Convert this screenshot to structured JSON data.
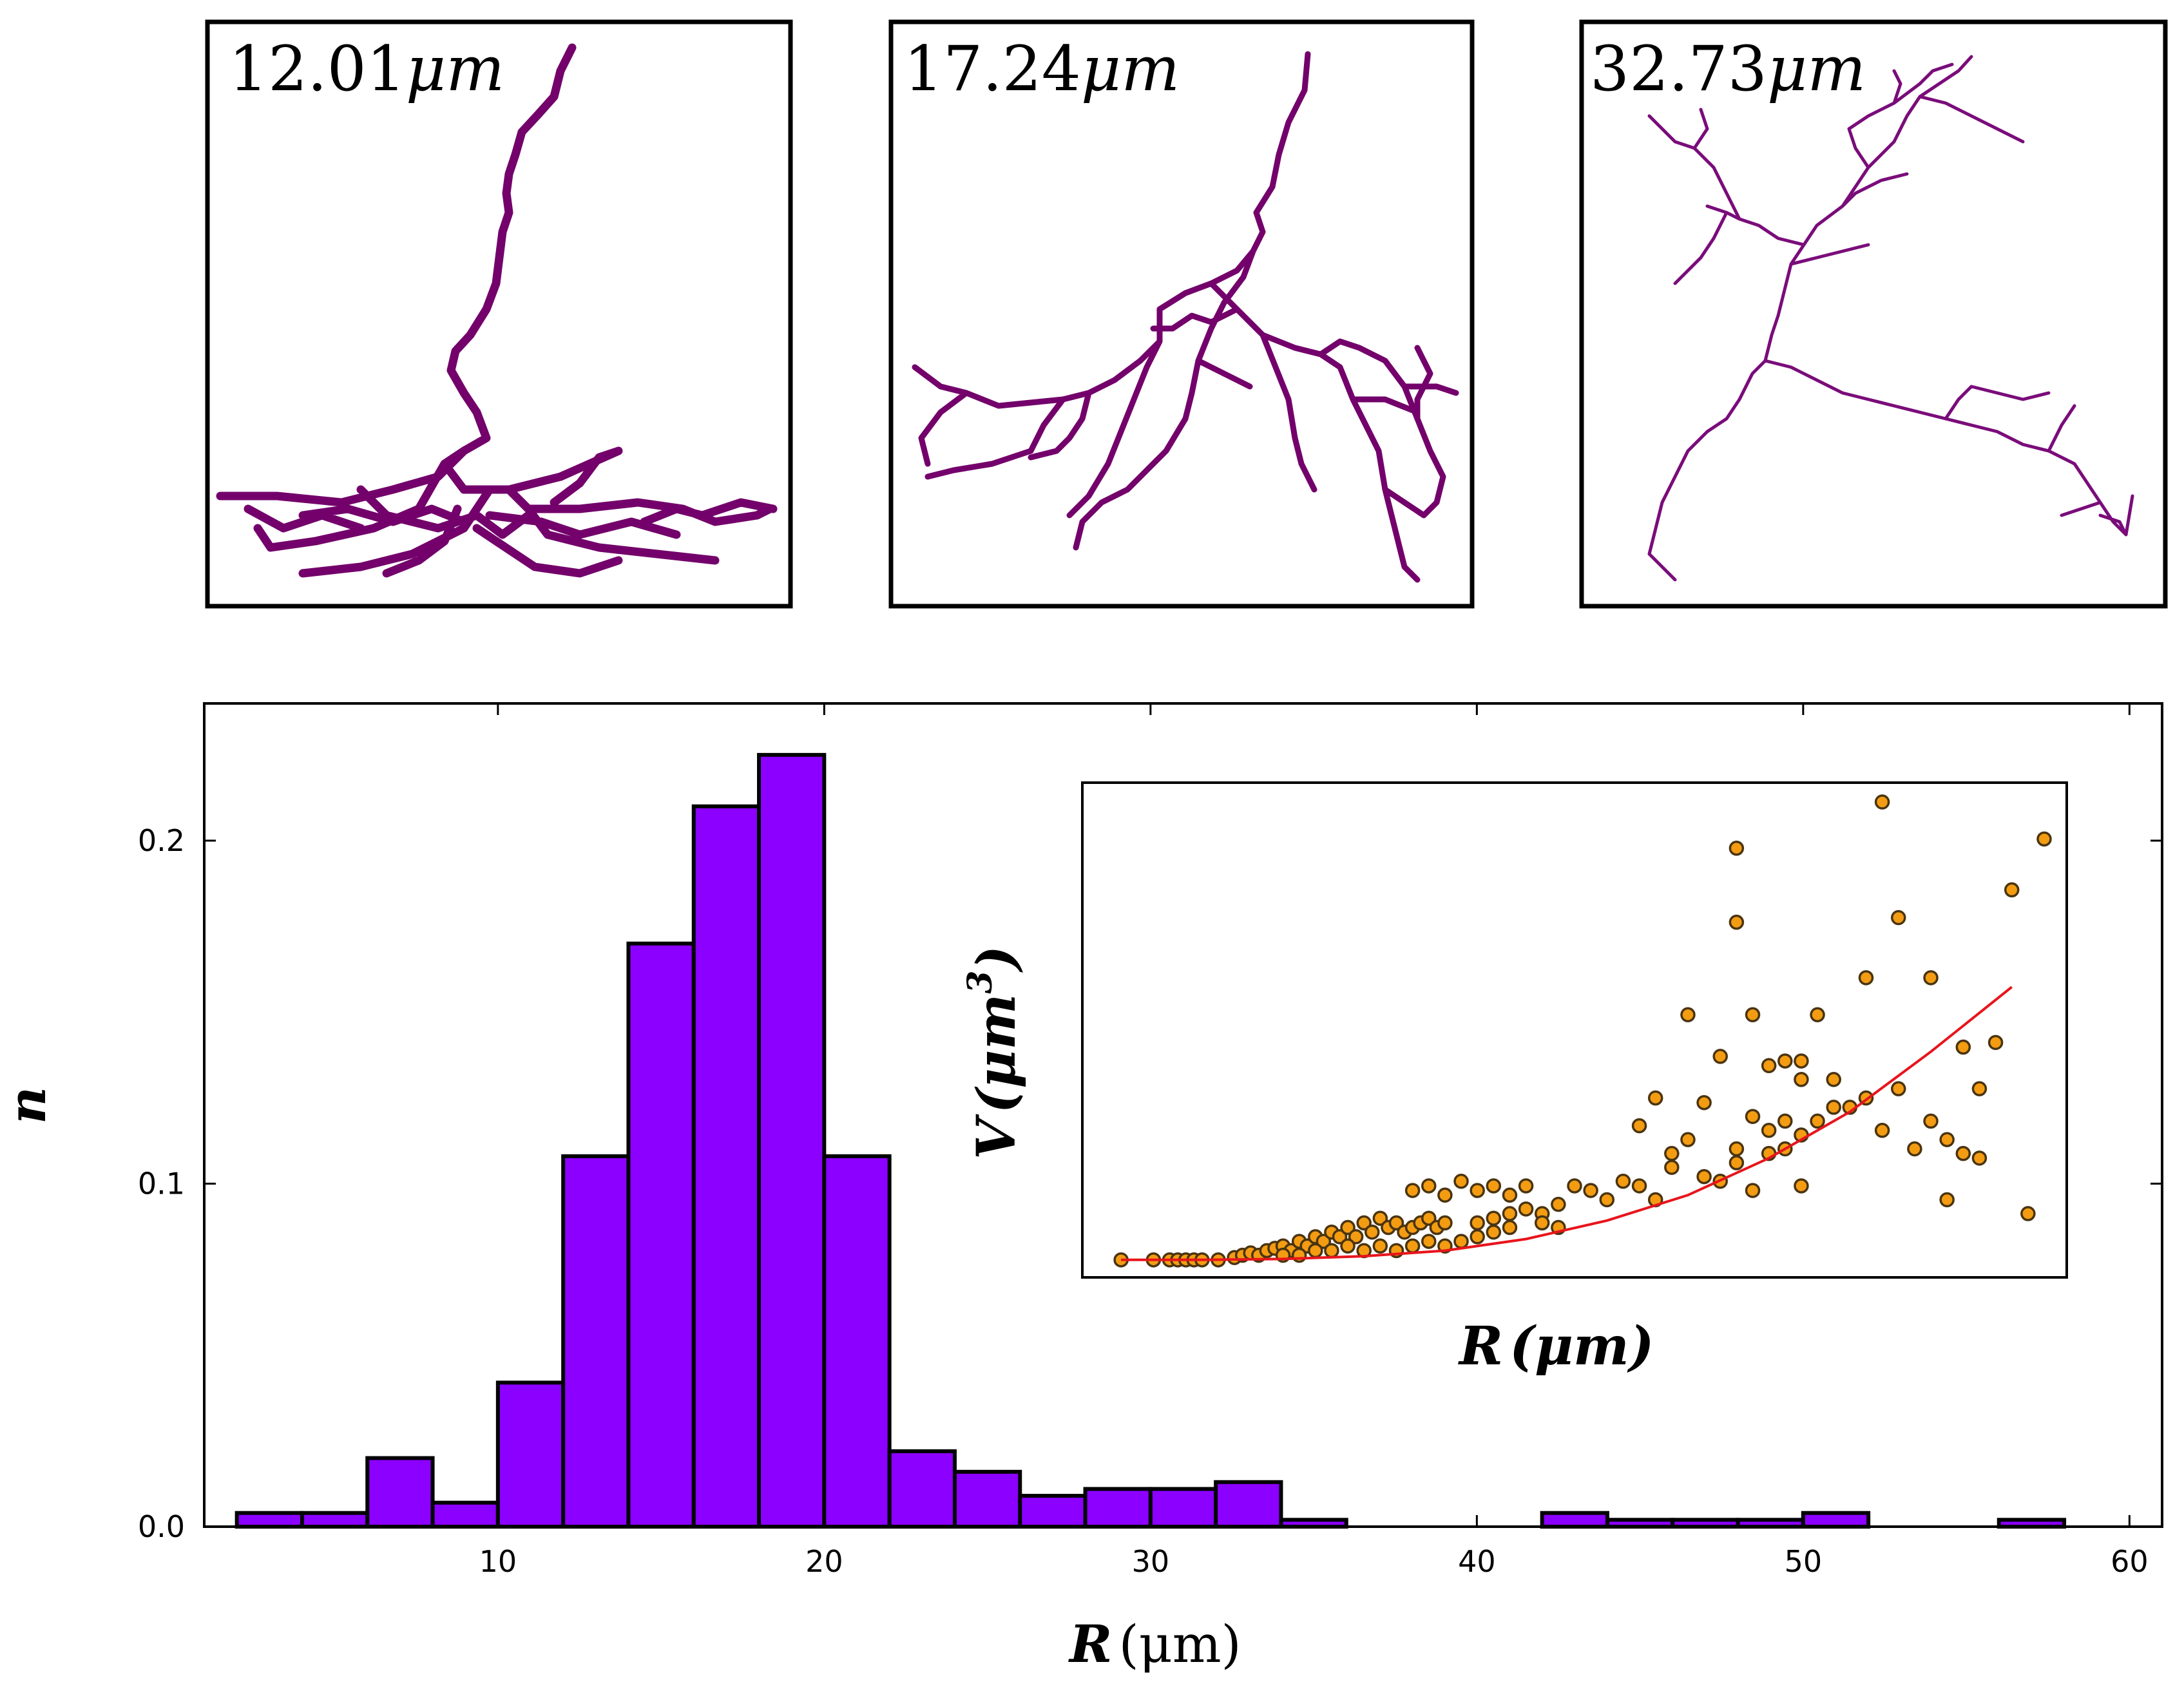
{
  "colors": {
    "bar_fill": "#8b00ff",
    "neuron": "#73006b",
    "neuron_light": "#7a0c7a",
    "point_fill": "#f39c12",
    "point_edge": "#4a3410",
    "fit_line": "#e8141b"
  },
  "panels": [
    {
      "label": "12.01",
      "unit": "μm"
    },
    {
      "label": "17.24",
      "unit": "μm"
    },
    {
      "label": "32.73",
      "unit": "μm"
    }
  ],
  "chart_data": [
    {
      "type": "bar",
      "title": "",
      "xlabel": "R",
      "xlabel_unit": "(μm)",
      "ylabel": "n",
      "xlim": [
        1,
        61
      ],
      "ylim": [
        0,
        0.24
      ],
      "xticks": [
        10,
        20,
        30,
        40,
        50,
        60
      ],
      "xtick_labels": [
        "10",
        "20",
        "30",
        "40",
        "50",
        "60"
      ],
      "yticks": [
        0.0,
        0.1,
        0.2
      ],
      "ytick_labels": [
        "0.0",
        "0.1",
        "0.2"
      ],
      "bin_edges_start": 2,
      "bin_width": 2,
      "values": [
        0.004,
        0.004,
        0.02,
        0.007,
        0.042,
        0.108,
        0.17,
        0.21,
        0.225,
        0.108,
        0.022,
        0.016,
        0.009,
        0.011,
        0.011,
        0.013,
        0.002,
        0,
        0,
        0,
        0.004,
        0.002,
        0.002,
        0.002,
        0.004,
        0,
        0,
        0.002
      ]
    },
    {
      "type": "scatter",
      "title": "",
      "xlabel": "R",
      "xlabel_unit": "(μm)",
      "ylabel": "V",
      "ylabel_unit": "(μm",
      "ylabel_exp": "3",
      "ylabel_close": ")",
      "xlim": [
        2,
        60
      ],
      "ylim": [
        0,
        100
      ],
      "points": [
        [
          3,
          1
        ],
        [
          5,
          1
        ],
        [
          6,
          1
        ],
        [
          6.5,
          1
        ],
        [
          7,
          1
        ],
        [
          7.5,
          1
        ],
        [
          8,
          1
        ],
        [
          9,
          1
        ],
        [
          10,
          1.5
        ],
        [
          10.5,
          2
        ],
        [
          11,
          2.5
        ],
        [
          11.5,
          2
        ],
        [
          12,
          3
        ],
        [
          12.5,
          3.5
        ],
        [
          13,
          4
        ],
        [
          13.5,
          3
        ],
        [
          14,
          5
        ],
        [
          14.5,
          4
        ],
        [
          15,
          6
        ],
        [
          15.5,
          5
        ],
        [
          16,
          7
        ],
        [
          16.5,
          6
        ],
        [
          17,
          8
        ],
        [
          17.5,
          6
        ],
        [
          18,
          9
        ],
        [
          18.5,
          7
        ],
        [
          19,
          10
        ],
        [
          19.5,
          8
        ],
        [
          20,
          9
        ],
        [
          20.5,
          7
        ],
        [
          21,
          8
        ],
        [
          21.5,
          9
        ],
        [
          22,
          10
        ],
        [
          22.5,
          8
        ],
        [
          23,
          9
        ],
        [
          13,
          2
        ],
        [
          14,
          2
        ],
        [
          15,
          3
        ],
        [
          16,
          3
        ],
        [
          17,
          4
        ],
        [
          18,
          3
        ],
        [
          19,
          4
        ],
        [
          20,
          3
        ],
        [
          21,
          4
        ],
        [
          22,
          5
        ],
        [
          23,
          4
        ],
        [
          24,
          5
        ],
        [
          25,
          6
        ],
        [
          26,
          7
        ],
        [
          27,
          8
        ],
        [
          25,
          9
        ],
        [
          26,
          10
        ],
        [
          27,
          11
        ],
        [
          28,
          12
        ],
        [
          29,
          11
        ],
        [
          30,
          13
        ],
        [
          31,
          17
        ],
        [
          32,
          16
        ],
        [
          33,
          14
        ],
        [
          21,
          16
        ],
        [
          22,
          17
        ],
        [
          23,
          15
        ],
        [
          24,
          18
        ],
        [
          25,
          16
        ],
        [
          26,
          17
        ],
        [
          27,
          15
        ],
        [
          28,
          17
        ],
        [
          30,
          8
        ],
        [
          29,
          9
        ],
        [
          35,
          17
        ],
        [
          36,
          14
        ],
        [
          37,
          21
        ],
        [
          38,
          27
        ],
        [
          39,
          19
        ],
        [
          40,
          18
        ],
        [
          41,
          22
        ],
        [
          42,
          32
        ],
        [
          43,
          24
        ],
        [
          44,
          31
        ],
        [
          45,
          17
        ],
        [
          36,
          36
        ],
        [
          42,
          16
        ],
        [
          34,
          18
        ],
        [
          35,
          30
        ],
        [
          37,
          24
        ],
        [
          39,
          35
        ],
        [
          41,
          25
        ],
        [
          43,
          29
        ],
        [
          44,
          25
        ],
        [
          45,
          28
        ],
        [
          40,
          45
        ],
        [
          42,
          54
        ],
        [
          43,
          43
        ],
        [
          44,
          44
        ],
        [
          45,
          44
        ],
        [
          46,
          54
        ],
        [
          45,
          40
        ],
        [
          46,
          31
        ],
        [
          47,
          34
        ],
        [
          47,
          40
        ],
        [
          48,
          34
        ],
        [
          49,
          36
        ],
        [
          50,
          29
        ],
        [
          51,
          38
        ],
        [
          52,
          25
        ],
        [
          53,
          31
        ],
        [
          54,
          27
        ],
        [
          55,
          24
        ],
        [
          56,
          38
        ],
        [
          38,
          54
        ],
        [
          41,
          74
        ],
        [
          41,
          90
        ],
        [
          49,
          62
        ],
        [
          50,
          100
        ],
        [
          51,
          75
        ],
        [
          53,
          62
        ],
        [
          54,
          14
        ],
        [
          55,
          47
        ],
        [
          56,
          23
        ],
        [
          57,
          48
        ],
        [
          58,
          81
        ],
        [
          60,
          92
        ],
        [
          59,
          11
        ]
      ],
      "fit_curve_x": [
        3,
        8,
        13,
        18,
        23,
        28,
        33,
        38,
        43,
        48,
        53,
        58
      ],
      "fit_curve_y": [
        1,
        1,
        1.2,
        1.8,
        3,
        5.5,
        9.5,
        15,
        23,
        33,
        46,
        60
      ]
    }
  ]
}
